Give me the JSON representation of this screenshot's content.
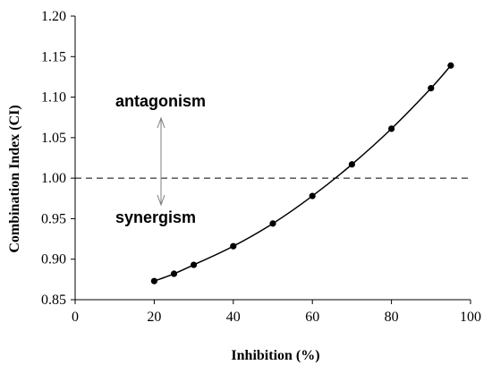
{
  "chart_data": {
    "type": "line",
    "xlabel": "Inhibition (%)",
    "ylabel": "Combination Index (CI)",
    "xlim": [
      0,
      100
    ],
    "ylim": [
      0.85,
      1.2
    ],
    "xticks": [
      "0",
      "20",
      "40",
      "60",
      "80",
      "100"
    ],
    "yticks": [
      "0.85",
      "0.90",
      "0.95",
      "1.00",
      "1.05",
      "1.10",
      "1.15",
      "1.20"
    ],
    "reference_line": {
      "y": 1.0,
      "style": "dashed"
    },
    "annotations": {
      "above": "antagonism",
      "below": "synergism"
    },
    "series": [
      {
        "x": [
          20,
          25,
          30,
          40,
          50,
          60,
          70,
          80,
          90,
          95
        ],
        "values": [
          0.873,
          0.882,
          0.893,
          0.916,
          0.944,
          0.978,
          1.017,
          1.061,
          1.111,
          1.139
        ]
      }
    ],
    "colors": {
      "line": "#000000",
      "marker": "#000000",
      "reference": "#000000",
      "arrow": "#7f7f7f"
    },
    "grid": false,
    "legend": "none"
  }
}
